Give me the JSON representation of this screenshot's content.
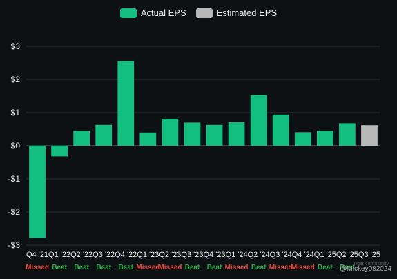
{
  "legend": {
    "actual_label": "Actual EPS",
    "estimated_label": "Estimated EPS"
  },
  "colors": {
    "background": "#0e1113",
    "actual": "#13bf80",
    "estimated": "#b8b8b8",
    "beat": "#2fa84a",
    "missed": "#e0483e",
    "grid": "#2b3035",
    "axis_text": "#e9ecef"
  },
  "watermark": "@Mickey082024",
  "chart_data": {
    "type": "bar",
    "categories": [
      "Q4 '21",
      "Q1 '22",
      "Q2 '22",
      "Q3 '22",
      "Q4 '22",
      "Q1 '23",
      "Q2 '23",
      "Q3 '23",
      "Q4 '23",
      "Q1 '24",
      "Q2 '24",
      "Q3 '24",
      "Q4 '24",
      "Q1 '25",
      "Q2 '25",
      "Q3 '25"
    ],
    "series": [
      {
        "name": "Actual EPS",
        "values": [
          -2.78,
          -0.32,
          0.45,
          0.63,
          2.55,
          0.4,
          0.81,
          0.7,
          0.63,
          0.71,
          1.53,
          0.94,
          0.41,
          0.45,
          0.68,
          null
        ]
      },
      {
        "name": "Estimated EPS",
        "values": [
          null,
          null,
          null,
          null,
          null,
          null,
          null,
          null,
          null,
          null,
          null,
          null,
          null,
          null,
          null,
          0.62
        ]
      }
    ],
    "results": [
      "Missed",
      "Beat",
      "Beat",
      "Beat",
      "Beat",
      "Missed",
      "Missed",
      "Beat",
      "Beat",
      "Missed",
      "Beat",
      "Missed",
      "Missed",
      "Beat",
      "Beat",
      ""
    ],
    "ylim": [
      -3,
      3
    ],
    "yticks": [
      -3,
      -2,
      -1,
      0,
      1,
      2,
      3
    ],
    "ytick_labels": [
      "-$3",
      "-$2",
      "-$1",
      "$0",
      "$1",
      "$2",
      "$3"
    ],
    "grid": true,
    "legend_position": "top-center"
  }
}
